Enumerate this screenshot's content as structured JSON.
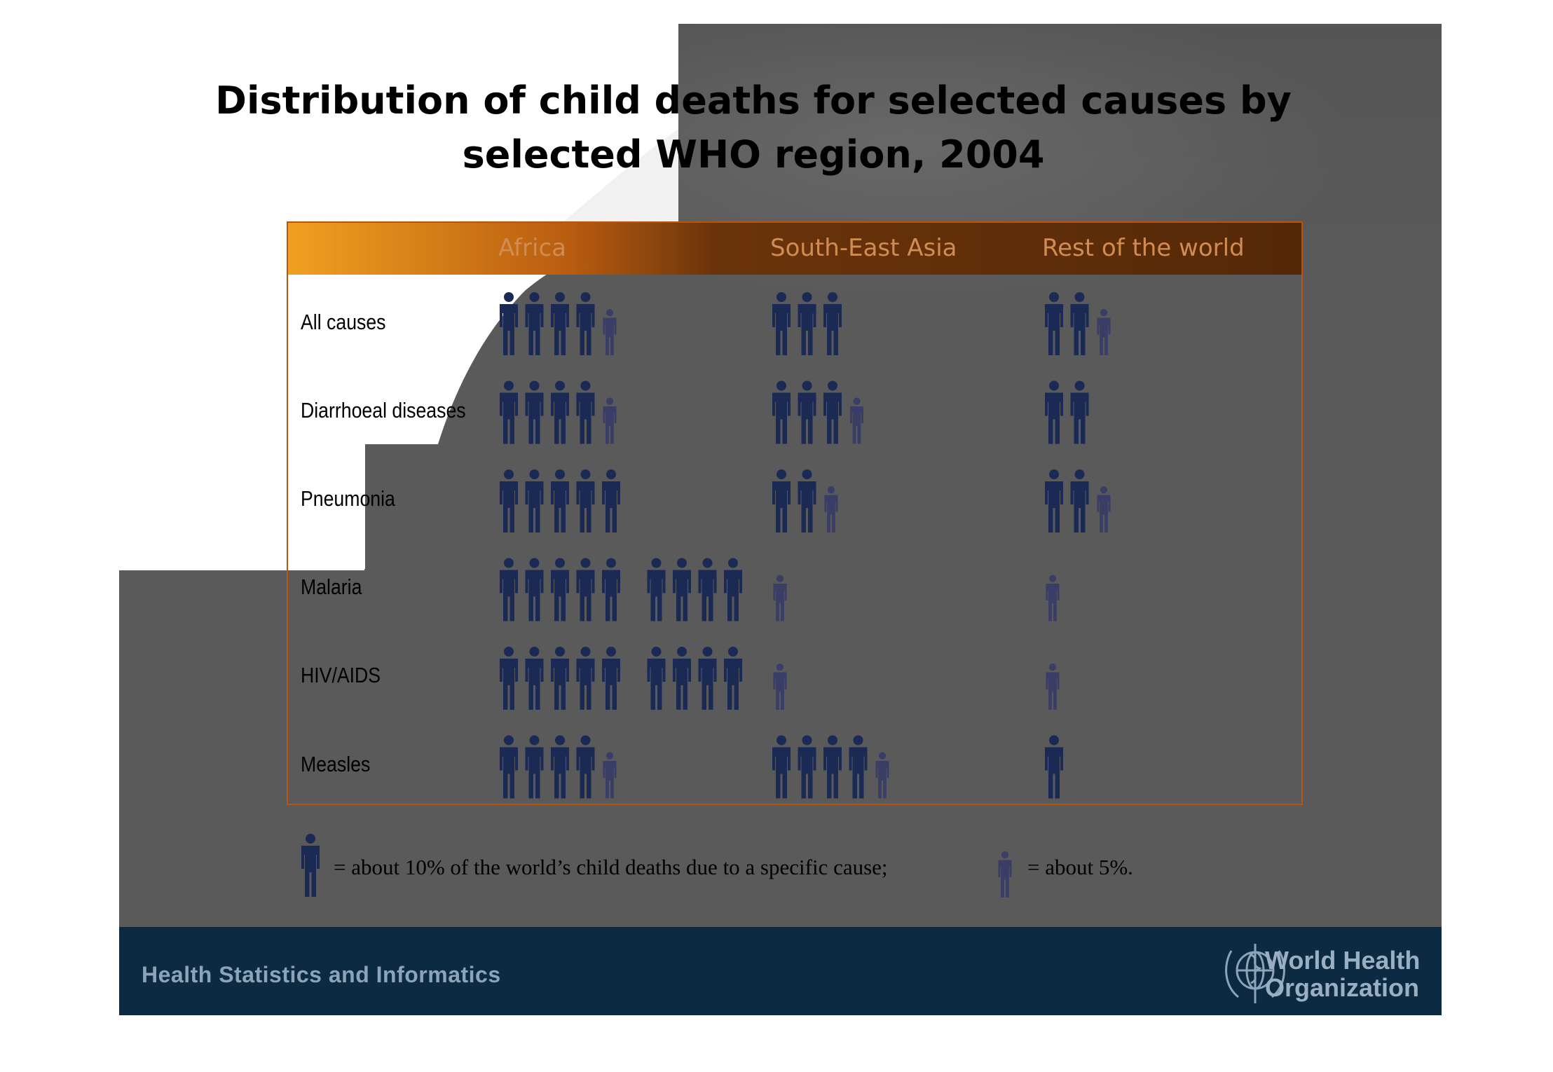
{
  "title_line1": "Distribution of child deaths for selected causes by",
  "title_line2": "selected WHO region, 2004",
  "footer": {
    "left_text": "Health Statistics and Informatics",
    "org_line1": "World Health",
    "org_line2": "Organization"
  },
  "legend": {
    "big_text": "= about 10% of the world’s child deaths due to a specific cause;",
    "small_text": "= about 5%."
  },
  "colors": {
    "big_figure": "#1a2a55",
    "small_figure": "#3a3e66",
    "header_orange": "#f0a020",
    "header_brown": "#552808",
    "footer": "#0c2a42"
  },
  "chart_data": {
    "type": "table",
    "unit_note": "each big figure = about 10%, each small figure = about 5% of the world's child deaths for the cause",
    "columns": [
      "Africa",
      "South-East Asia",
      "Rest of the world"
    ],
    "rows": [
      {
        "label": "All causes",
        "values": [
          45,
          30,
          25
        ]
      },
      {
        "label": "Diarrhoeal diseases",
        "values": [
          45,
          35,
          20
        ]
      },
      {
        "label": "Pneumonia",
        "values": [
          50,
          25,
          25
        ]
      },
      {
        "label": "Malaria",
        "values": [
          90,
          5,
          5
        ]
      },
      {
        "label": "HIV/AIDS",
        "values": [
          90,
          5,
          5
        ]
      },
      {
        "label": "Measles",
        "values": [
          45,
          45,
          10
        ]
      }
    ]
  }
}
